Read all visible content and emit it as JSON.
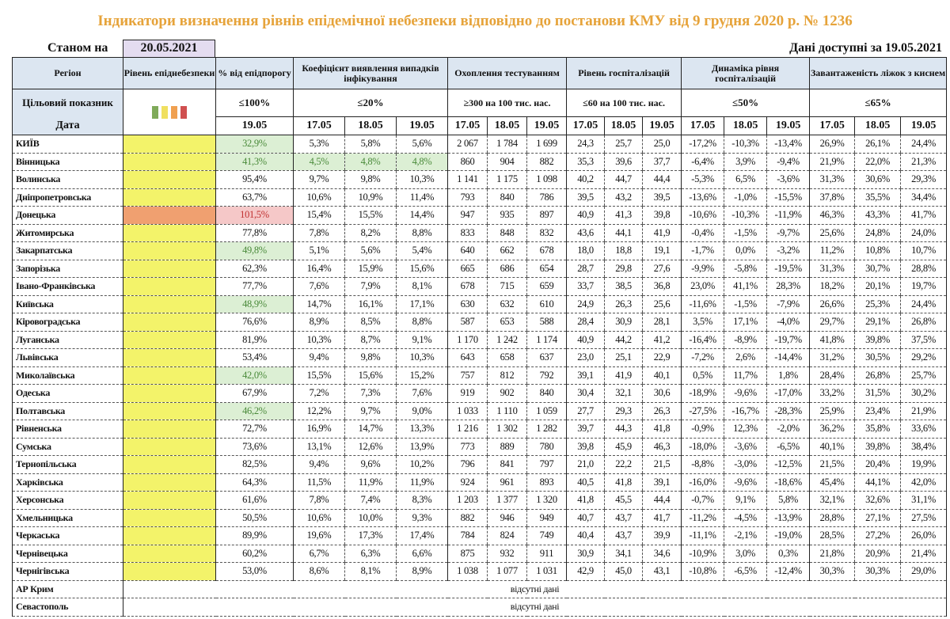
{
  "title": "Індикатори визначення рівнів епідемічної небезпеки відповідно до постанови КМУ від 9 грудня 2020 р. № 1236",
  "asof_label": "Станом на",
  "asof_date": "20.05.2021",
  "available": "Дані доступні за  19.05.2021",
  "headers": {
    "region": "Регіон",
    "level": "Рівень епіднебезпеки",
    "pct": "% від епідпорогу",
    "coef": "Коефіцієнт виявлення випадків інфікування",
    "testing": "Охоплення тестуванням",
    "hosp": "Рівень госпіталізацій",
    "dyn": "Динаміка рівня госпіталізацій",
    "beds": "Завантаженість ліжок з киснем",
    "target_label": "Цільовий показник",
    "date_label": "Дата"
  },
  "targets": {
    "pct": "≤100%",
    "coef": "≤20%",
    "testing": "≥300 на 100 тис. нас.",
    "hosp": "≤60 на 100 тис. нас.",
    "dyn": "≤50%",
    "beds": "≤65%"
  },
  "level_colors": [
    "#7faa5a",
    "#f0e060",
    "#f0a050",
    "#d05050"
  ],
  "dates": {
    "pct": "19.05",
    "triple": [
      "17.05",
      "18.05",
      "19.05"
    ]
  },
  "rows": [
    [
      "КИЇВ",
      "32,9%",
      "5,3%",
      "5,8%",
      "5,6%",
      "2 067",
      "1 784",
      "1 699",
      "24,3",
      "25,7",
      "25,0",
      "-17,2%",
      "-10,3%",
      "-13,4%",
      "26,9%",
      "26,1%",
      "24,4%"
    ],
    [
      "Вінницька",
      "41,3%",
      "4,5%",
      "4,8%",
      "4,8%",
      "860",
      "904",
      "882",
      "35,3",
      "39,6",
      "37,7",
      "-6,4%",
      "3,9%",
      "-9,4%",
      "21,9%",
      "22,0%",
      "21,3%"
    ],
    [
      "Волинська",
      "95,4%",
      "9,7%",
      "9,8%",
      "10,3%",
      "1 141",
      "1 175",
      "1 098",
      "40,2",
      "44,7",
      "44,4",
      "-5,3%",
      "6,5%",
      "-3,6%",
      "31,3%",
      "30,6%",
      "29,3%"
    ],
    [
      "Дніпропетровська",
      "63,7%",
      "10,6%",
      "10,9%",
      "11,4%",
      "793",
      "840",
      "786",
      "39,5",
      "43,2",
      "39,5",
      "-13,6%",
      "-1,0%",
      "-15,5%",
      "37,8%",
      "35,5%",
      "34,4%"
    ],
    [
      "Донецька",
      "101,5%",
      "15,4%",
      "15,5%",
      "14,4%",
      "947",
      "935",
      "897",
      "40,9",
      "41,3",
      "39,8",
      "-10,6%",
      "-10,3%",
      "-11,9%",
      "46,3%",
      "43,3%",
      "41,7%"
    ],
    [
      "Житомирська",
      "77,8%",
      "7,8%",
      "8,2%",
      "8,8%",
      "833",
      "848",
      "832",
      "43,6",
      "44,1",
      "41,9",
      "-0,4%",
      "-1,5%",
      "-9,7%",
      "25,6%",
      "24,8%",
      "24,0%"
    ],
    [
      "Закарпатська",
      "49,8%",
      "5,1%",
      "5,6%",
      "5,4%",
      "640",
      "662",
      "678",
      "18,0",
      "18,8",
      "19,1",
      "-1,7%",
      "0,0%",
      "-3,2%",
      "11,2%",
      "10,8%",
      "10,7%"
    ],
    [
      "Запорізька",
      "62,3%",
      "16,4%",
      "15,9%",
      "15,6%",
      "665",
      "686",
      "654",
      "28,7",
      "29,8",
      "27,6",
      "-9,9%",
      "-5,8%",
      "-19,5%",
      "31,3%",
      "30,7%",
      "28,8%"
    ],
    [
      "Івано-Франківська",
      "77,7%",
      "7,6%",
      "7,9%",
      "8,1%",
      "678",
      "715",
      "659",
      "33,7",
      "38,5",
      "36,8",
      "23,0%",
      "41,1%",
      "28,3%",
      "18,2%",
      "20,1%",
      "19,7%"
    ],
    [
      "Київська",
      "48,9%",
      "14,7%",
      "16,1%",
      "17,1%",
      "630",
      "632",
      "610",
      "24,9",
      "26,3",
      "25,6",
      "-11,6%",
      "-1,5%",
      "-7,9%",
      "26,6%",
      "25,3%",
      "24,4%"
    ],
    [
      "Кіровоградська",
      "76,6%",
      "8,9%",
      "8,5%",
      "8,8%",
      "587",
      "653",
      "588",
      "28,4",
      "30,9",
      "28,1",
      "3,5%",
      "17,1%",
      "-4,0%",
      "29,7%",
      "29,1%",
      "26,8%"
    ],
    [
      "Луганська",
      "81,9%",
      "10,3%",
      "8,7%",
      "9,1%",
      "1 170",
      "1 242",
      "1 174",
      "40,9",
      "44,2",
      "41,2",
      "-16,4%",
      "-8,9%",
      "-19,7%",
      "41,8%",
      "39,8%",
      "37,5%"
    ],
    [
      "Львівська",
      "53,4%",
      "9,4%",
      "9,8%",
      "10,3%",
      "643",
      "658",
      "637",
      "23,0",
      "25,1",
      "22,9",
      "-7,2%",
      "2,6%",
      "-14,4%",
      "31,2%",
      "30,5%",
      "29,2%"
    ],
    [
      "Миколаївська",
      "42,0%",
      "15,5%",
      "15,6%",
      "15,2%",
      "757",
      "812",
      "792",
      "39,1",
      "41,9",
      "40,1",
      "0,5%",
      "11,7%",
      "1,8%",
      "28,4%",
      "26,8%",
      "25,7%"
    ],
    [
      "Одеська",
      "67,9%",
      "7,2%",
      "7,3%",
      "7,6%",
      "919",
      "902",
      "840",
      "30,4",
      "32,1",
      "30,6",
      "-18,9%",
      "-9,6%",
      "-17,0%",
      "33,2%",
      "31,5%",
      "30,2%"
    ],
    [
      "Полтавська",
      "46,2%",
      "12,2%",
      "9,7%",
      "9,0%",
      "1 033",
      "1 110",
      "1 059",
      "27,7",
      "29,3",
      "26,3",
      "-27,5%",
      "-16,7%",
      "-28,3%",
      "25,9%",
      "23,4%",
      "21,9%"
    ],
    [
      "Рівненська",
      "72,7%",
      "16,9%",
      "14,7%",
      "13,3%",
      "1 216",
      "1 302",
      "1 282",
      "39,7",
      "44,3",
      "41,8",
      "-0,9%",
      "12,3%",
      "-2,0%",
      "36,2%",
      "35,8%",
      "33,6%"
    ],
    [
      "Сумська",
      "73,6%",
      "13,1%",
      "12,6%",
      "13,9%",
      "773",
      "889",
      "780",
      "39,8",
      "45,9",
      "46,3",
      "-18,0%",
      "-3,6%",
      "-6,5%",
      "40,1%",
      "39,8%",
      "38,4%"
    ],
    [
      "Тернопільська",
      "82,5%",
      "9,4%",
      "9,6%",
      "10,2%",
      "796",
      "841",
      "797",
      "21,0",
      "22,2",
      "21,5",
      "-8,8%",
      "-3,0%",
      "-12,5%",
      "21,5%",
      "20,4%",
      "19,9%"
    ],
    [
      "Харківська",
      "64,3%",
      "11,5%",
      "11,9%",
      "11,9%",
      "924",
      "961",
      "893",
      "40,5",
      "41,8",
      "39,1",
      "-16,0%",
      "-9,6%",
      "-18,6%",
      "45,4%",
      "44,1%",
      "42,0%"
    ],
    [
      "Херсонська",
      "61,6%",
      "7,8%",
      "7,4%",
      "8,3%",
      "1 203",
      "1 377",
      "1 320",
      "41,8",
      "45,5",
      "44,4",
      "-0,7%",
      "9,1%",
      "5,8%",
      "32,1%",
      "32,6%",
      "31,1%"
    ],
    [
      "Хмельницька",
      "50,5%",
      "10,6%",
      "10,0%",
      "9,3%",
      "882",
      "946",
      "949",
      "40,7",
      "43,7",
      "41,7",
      "-11,2%",
      "-4,5%",
      "-13,9%",
      "28,8%",
      "27,1%",
      "27,5%"
    ],
    [
      "Черкаська",
      "89,9%",
      "19,6%",
      "17,3%",
      "17,4%",
      "784",
      "824",
      "749",
      "40,4",
      "43,7",
      "39,9",
      "-11,1%",
      "-2,1%",
      "-19,0%",
      "28,5%",
      "27,2%",
      "26,0%"
    ],
    [
      "Чернівецька",
      "60,2%",
      "6,7%",
      "6,3%",
      "6,6%",
      "875",
      "932",
      "911",
      "30,9",
      "34,1",
      "34,6",
      "-10,9%",
      "3,0%",
      "0,3%",
      "21,8%",
      "20,9%",
      "21,4%"
    ],
    [
      "Чернігівська",
      "53,0%",
      "8,6%",
      "8,1%",
      "8,9%",
      "1 038",
      "1 077",
      "1 031",
      "42,9",
      "45,0",
      "43,1",
      "-10,8%",
      "-6,5%",
      "-12,4%",
      "30,3%",
      "30,3%",
      "29,0%"
    ]
  ],
  "pct_status": [
    "g",
    "g",
    "",
    "",
    "r",
    "",
    "g",
    "",
    "",
    "g",
    "",
    "",
    "",
    "g",
    "",
    "g",
    "",
    "",
    "",
    "",
    "",
    "",
    "",
    "",
    ""
  ],
  "coef_green_rows": [
    1
  ],
  "level_status": [
    "y",
    "y",
    "y",
    "y",
    "o",
    "y",
    "y",
    "y",
    "y",
    "y",
    "y",
    "y",
    "y",
    "y",
    "y",
    "y",
    "y",
    "y",
    "y",
    "y",
    "y",
    "y",
    "y",
    "y",
    "y"
  ],
  "no_data_rows": [
    {
      "name": "АР Крим",
      "text": "відсутні дані"
    },
    {
      "name": "Севастополь",
      "text": "відсутні дані"
    }
  ]
}
